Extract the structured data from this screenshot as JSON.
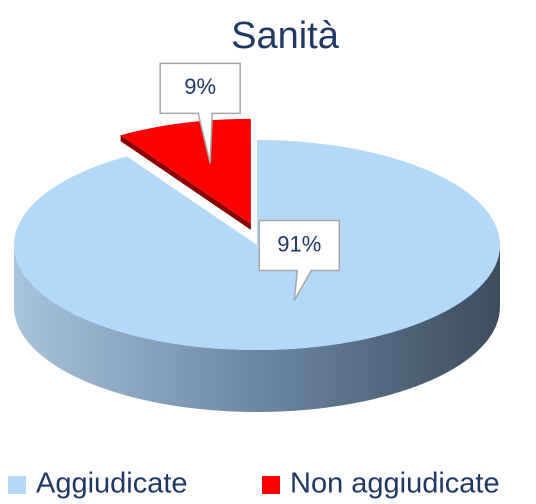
{
  "chart_data": {
    "type": "pie",
    "title": "Sanità",
    "categories": [
      "Aggiudicate",
      "Non aggiudicate"
    ],
    "values": [
      91,
      9
    ],
    "value_labels": [
      "91%",
      "9%"
    ],
    "colors": [
      "#b4d8f8",
      "#ff0000"
    ],
    "legend": "bottom"
  }
}
